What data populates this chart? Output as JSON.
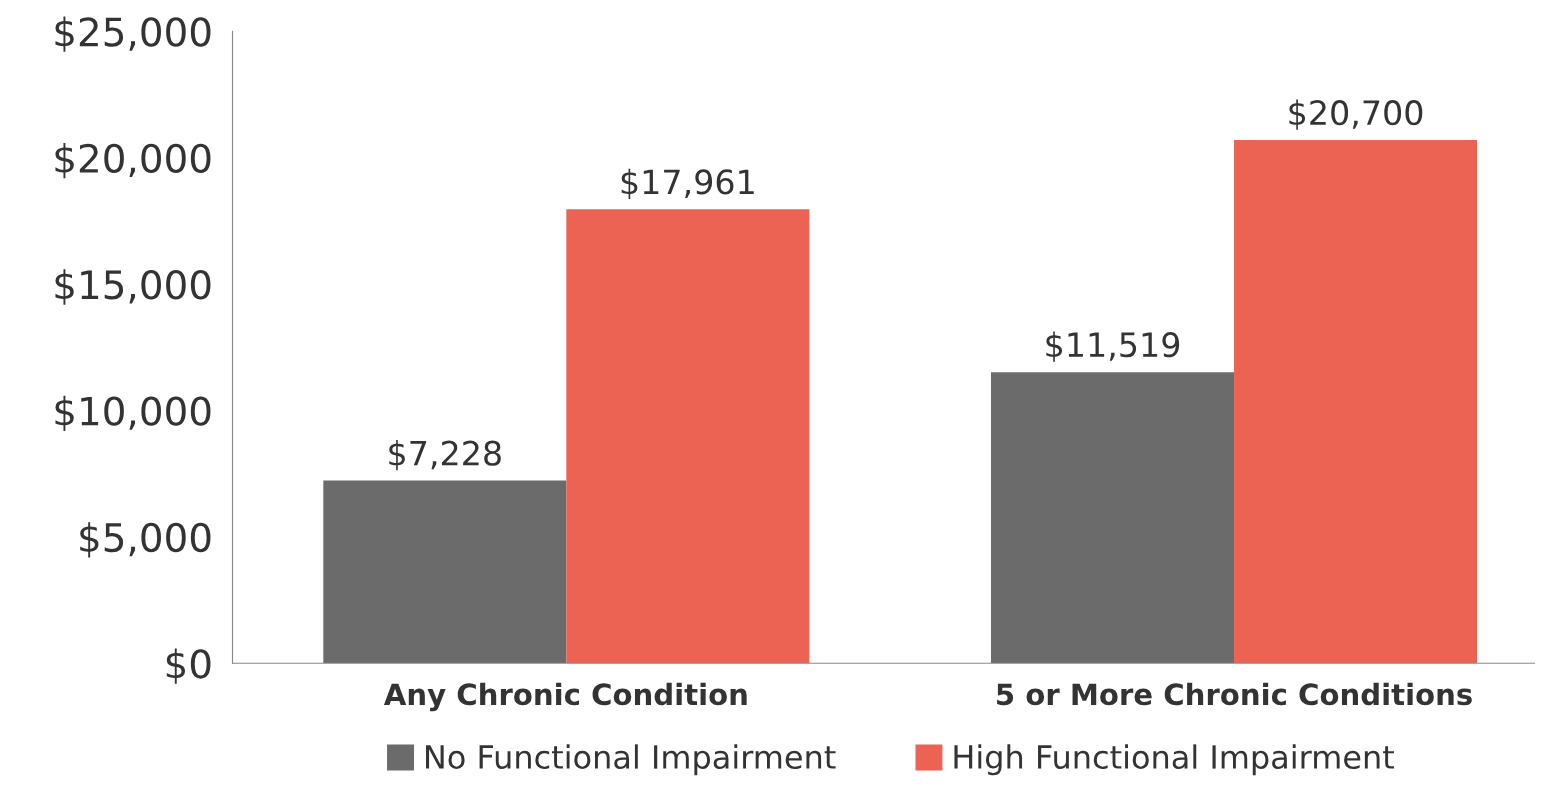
{
  "chart_data": {
    "type": "bar",
    "categories": [
      "Any Chronic Condition",
      "5 or More Chronic Conditions"
    ],
    "series": [
      {
        "name": "No Functional Impairment",
        "color": "#6b6b6b",
        "values": [
          7228,
          11519
        ],
        "value_labels": [
          "$7,228",
          "$11,519"
        ]
      },
      {
        "name": "High Functional Impairment",
        "color": "#ec6253",
        "values": [
          17961,
          20700
        ],
        "value_labels": [
          "$17,961",
          "$20,700"
        ]
      }
    ],
    "ylim": [
      0,
      25000
    ],
    "yticks": [
      {
        "value": 0,
        "label": "$0"
      },
      {
        "value": 5000,
        "label": "$5,000"
      },
      {
        "value": 10000,
        "label": "$10,000"
      },
      {
        "value": 15000,
        "label": "$15,000"
      },
      {
        "value": 20000,
        "label": "$20,000"
      },
      {
        "value": 25000,
        "label": "$25,000"
      }
    ],
    "grid": false,
    "legend": "bottom"
  }
}
